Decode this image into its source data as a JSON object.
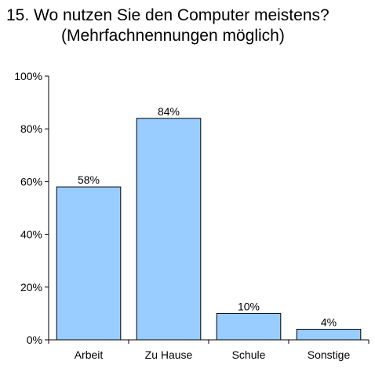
{
  "title": {
    "line1": "15.  Wo nutzen Sie den Computer meistens?",
    "line2": "(Mehrfachnennungen möglich)"
  },
  "colors": {
    "bar_fill": "#99ccff",
    "bar_stroke": "#000000",
    "axis": "#000000",
    "background": "#ffffff"
  },
  "chart_data": {
    "type": "bar",
    "title": "15.  Wo nutzen Sie den Computer meistens? (Mehrfachnennungen möglich)",
    "categories": [
      "Arbeit",
      "Zu Hause",
      "Schule",
      "Sonstige"
    ],
    "values": [
      58,
      84,
      10,
      4
    ],
    "data_labels": [
      "58%",
      "84%",
      "10%",
      "4%"
    ],
    "xlabel": "",
    "ylabel": "",
    "ylim": [
      0,
      100
    ],
    "y_ticks": [
      0,
      20,
      40,
      60,
      80,
      100
    ],
    "y_tick_labels": [
      "0%",
      "20%",
      "40%",
      "60%",
      "80%",
      "100%"
    ],
    "grid": false,
    "legend": "none"
  }
}
